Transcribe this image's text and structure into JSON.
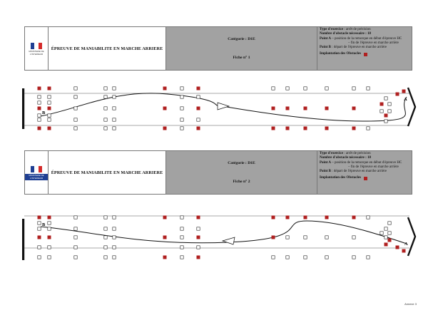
{
  "sheets": [
    {
      "logo_text": "MINISTERE DE L'INTERIEUR",
      "title": "ÉPREUVE DE MANIABILITE EN MARCHE ARRIERE",
      "category": "Catégorie : D1E",
      "sheet": "Fiche n° 1",
      "info": {
        "type_label": "Type d'exercice",
        "type_value": " : arrêt de précision",
        "count_label": "Nombre d'obstacle nécessaire : 18",
        "pointA_label": "Point A",
        "pointA_value": " – position de la remorque en début d'épreuve HC",
        "pointA_end": "– fin de l'épreuve en marche arrière",
        "pointB_label": "Point B",
        "pointB_value": " : départ de l'épreuve en marche arrière",
        "legend": "Implantation des Obstacles"
      },
      "labels": {
        "A": "A",
        "B": "B"
      }
    },
    {
      "logo_text": "MINISTERE DE L'INTERIEUR",
      "title": "ÉPREUVE DE MANIABILITE EN MARCHE ARRIERE",
      "category": "Catégorie : D1E",
      "sheet": "Fiche n° 2",
      "info": {
        "type_label": "Type d'exercice",
        "type_value": " : arrêt de précision",
        "count_label": "Nombre d'obstacle nécessaire : 18",
        "pointA_label": "Point A",
        "pointA_value": " – position de la remorque en début d'épreuve HC",
        "pointA_end": "– fin de l'épreuve en marche arrière",
        "pointB_label": "Point B",
        "pointB_value": " : départ de l'épreuve en marche arrière",
        "legend": "Implantation des Obstacles"
      },
      "labels": {
        "A": "A",
        "B": "B"
      }
    }
  ],
  "footer": "Annexe 3",
  "colors": {
    "obstacle": "#b02020",
    "header_bg": "#a2a2a2",
    "flag_blue": "#1f3f93",
    "flag_red": "#d42a2a"
  }
}
